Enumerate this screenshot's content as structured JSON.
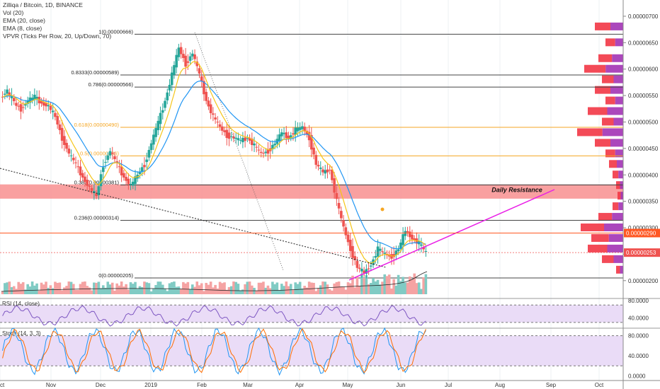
{
  "chart_data": [
    {
      "type": "candlestick",
      "symbol_title": "Zilliqa / Bitcoin, 1D, BINANCE",
      "indicators": [
        "Vol (20)",
        "EMA (20, close)",
        "EMA (8, close)",
        "VPVR (Ticks Per Row, 20, Up/Down, 70)"
      ],
      "x_ticks": [
        "Oct",
        "Nov",
        "Dec",
        "2019",
        "Feb",
        "Mar",
        "Apr",
        "May",
        "Jun",
        "Jul",
        "Aug",
        "Sep",
        "Oct"
      ],
      "y_ticks": [
        "0.00000700",
        "0.00000650",
        "0.00000600",
        "0.00000550",
        "0.00000500",
        "0.00000450",
        "0.00000400",
        "0.00000350",
        "0.00000300",
        "0.00000250",
        "0.00000200"
      ],
      "ylim": [
        1.85e-06,
        7.2e-06
      ],
      "current_price_label": "0.00000290",
      "secondary_price_label": "0.00000253",
      "fib_levels": [
        {
          "label": "1(0.00000666)",
          "value": 6.66e-06,
          "color": "#444444"
        },
        {
          "label": "0.8333(0.00000589)",
          "value": 5.89e-06,
          "color": "#444444"
        },
        {
          "label": "0.786(0.00000566)",
          "value": 5.66e-06,
          "color": "#444444"
        },
        {
          "label": "0.618(0.00000490)",
          "value": 4.9e-06,
          "color": "#f5a623"
        },
        {
          "label": "0.5(0.00000436)",
          "value": 4.36e-06,
          "color": "#f5a623"
        },
        {
          "label": "0.382(0.00000381)",
          "value": 3.81e-06,
          "color": "#444444"
        },
        {
          "label": "0.236(0.00000314)",
          "value": 3.14e-06,
          "color": "#444444"
        },
        {
          "label": "0(0.00000205)",
          "value": 2.05e-06,
          "color": "#444444"
        }
      ],
      "resistance_zone": {
        "label": "Daily Resistance",
        "from": 3.55e-06,
        "to": 3.82e-06
      },
      "price_path": [
        [
          5.45e-06,
          5.6e-06
        ],
        [
          5.55e-06,
          5.4e-06
        ],
        [
          5.35e-06,
          5.25e-06
        ],
        [
          5.25e-06,
          5.4e-06
        ],
        [
          5.4e-06,
          5.48e-06
        ],
        [
          5.48e-06,
          5.35e-06
        ],
        [
          5.35e-06,
          5.3e-06
        ],
        [
          5.3e-06,
          5.1e-06
        ],
        [
          5.1e-06,
          4.7e-06
        ],
        [
          4.7e-06,
          4.4e-06
        ],
        [
          4.4e-06,
          4.2e-06
        ],
        [
          4.2e-06,
          3.95e-06
        ],
        [
          3.95e-06,
          3.75e-06
        ],
        [
          3.75e-06,
          3.6e-06
        ],
        [
          3.6e-06,
          4.2e-06
        ],
        [
          4.2e-06,
          4.45e-06
        ],
        [
          4.45e-06,
          4.2e-06
        ],
        [
          4.2e-06,
          3.95e-06
        ],
        [
          3.95e-06,
          3.8e-06
        ],
        [
          3.8e-06,
          4e-06
        ],
        [
          4e-06,
          4.2e-06
        ],
        [
          4.2e-06,
          4.6e-06
        ],
        [
          4.6e-06,
          5e-06
        ],
        [
          5e-06,
          5.4e-06
        ],
        [
          5.4e-06,
          5.9e-06
        ],
        [
          5.9e-06,
          6.4e-06
        ],
        [
          6.4e-06,
          6.1e-06
        ],
        [
          6.1e-06,
          6.3e-06
        ],
        [
          6.3e-06,
          5.9e-06
        ],
        [
          5.9e-06,
          5.4e-06
        ],
        [
          5.4e-06,
          5.1e-06
        ],
        [
          5.1e-06,
          4.9e-06
        ],
        [
          4.9e-06,
          4.75e-06
        ],
        [
          4.75e-06,
          4.7e-06
        ],
        [
          4.7e-06,
          4.65e-06
        ],
        [
          4.65e-06,
          4.7e-06
        ],
        [
          4.7e-06,
          4.55e-06
        ],
        [
          4.55e-06,
          4.4e-06
        ],
        [
          4.4e-06,
          4.45e-06
        ],
        [
          4.45e-06,
          4.6e-06
        ],
        [
          4.6e-06,
          4.8e-06
        ],
        [
          4.8e-06,
          4.7e-06
        ],
        [
          4.7e-06,
          4.85e-06
        ],
        [
          4.85e-06,
          4.9e-06
        ],
        [
          4.9e-06,
          4.7e-06
        ],
        [
          4.7e-06,
          4.2e-06
        ],
        [
          4.2e-06,
          4.05e-06
        ],
        [
          4.05e-06,
          4.1e-06
        ],
        [
          4.1e-06,
          3.5e-06
        ],
        [
          3.5e-06,
          3e-06
        ],
        [
          3e-06,
          2.6e-06
        ],
        [
          2.6e-06,
          2.25e-06
        ],
        [
          2.25e-06,
          2.15e-06
        ],
        [
          2.15e-06,
          2.3e-06
        ],
        [
          2.3e-06,
          2.6e-06
        ],
        [
          2.6e-06,
          2.5e-06
        ],
        [
          2.5e-06,
          2.45e-06
        ],
        [
          2.45e-06,
          2.6e-06
        ],
        [
          2.6e-06,
          2.95e-06
        ],
        [
          2.95e-06,
          2.8e-06
        ],
        [
          2.8e-06,
          2.7e-06
        ],
        [
          2.7e-06,
          2.53e-06
        ]
      ],
      "price_path_start": "Oct",
      "price_path_end": "Jun"
    },
    {
      "type": "line",
      "title": "RSI (14, close)",
      "y_ticks": [
        "80.0000",
        "40.0000"
      ],
      "ylim": [
        20,
        85
      ]
    },
    {
      "type": "line",
      "title": "Stoch (14, 3, 3)",
      "y_ticks": [
        "80.0000",
        "40.0000",
        "0.0000"
      ],
      "ylim": [
        -5,
        95
      ]
    }
  ],
  "colors": {
    "up": "#26a69a",
    "down": "#ef5350",
    "ema20": "#2196f3",
    "ema8": "#f5c518",
    "resistance": "#f88f8f",
    "trendline": "#e91ee6",
    "rsi_band": "#eadcf7",
    "price_tag": "#ef5350",
    "orange_tag": "#ff5722"
  }
}
